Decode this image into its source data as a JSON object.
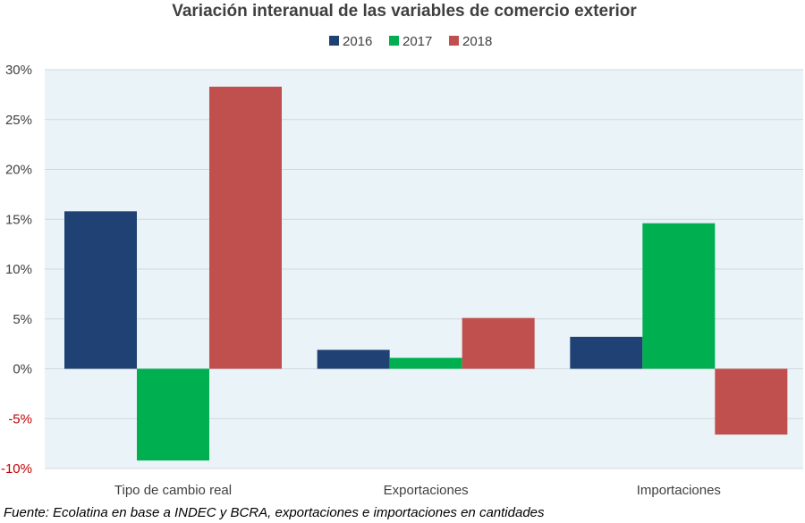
{
  "chart_data": {
    "type": "bar",
    "title": "Variación interanual de las variables de comercio exterior",
    "categories": [
      "Tipo de cambio real",
      "Exportaciones",
      "Importaciones"
    ],
    "series": [
      {
        "name": "2016",
        "color": "#1f4173",
        "values": [
          15.8,
          1.9,
          3.2
        ]
      },
      {
        "name": "2017",
        "color": "#00b050",
        "values": [
          -9.2,
          1.1,
          14.6
        ]
      },
      {
        "name": "2018",
        "color": "#c0504d",
        "values": [
          28.3,
          5.1,
          -6.6
        ]
      }
    ],
    "ylim": [
      -10,
      30
    ],
    "yticks": [
      {
        "value": 30,
        "label": "30%"
      },
      {
        "value": 25,
        "label": "25%"
      },
      {
        "value": 20,
        "label": "20%"
      },
      {
        "value": 15,
        "label": "15%"
      },
      {
        "value": 10,
        "label": "10%"
      },
      {
        "value": 5,
        "label": "5%"
      },
      {
        "value": 0,
        "label": "0%"
      },
      {
        "value": -5,
        "label": "-5%"
      },
      {
        "value": -10,
        "label": "-10%"
      }
    ],
    "grid": true,
    "legend": "top-center",
    "plot_background": "#eaf4f8",
    "negative_tick_color": "#c00000",
    "xlabel": "",
    "ylabel": ""
  },
  "source": "Fuente: Ecolatina en base a INDEC y BCRA, exportaciones e importaciones en cantidades"
}
